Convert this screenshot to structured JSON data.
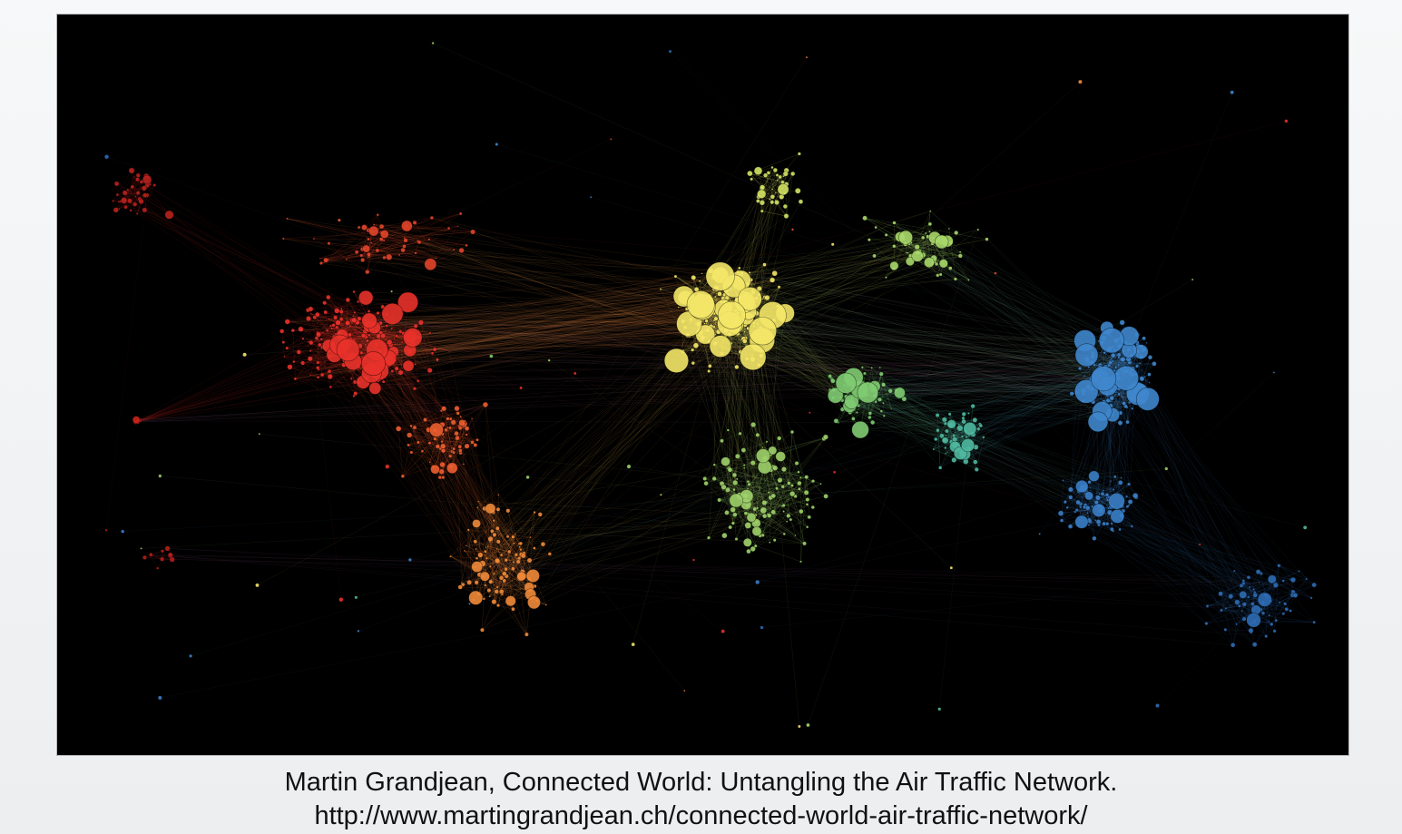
{
  "caption": {
    "title": "Martin Grandjean, Connected World: Untangling the Air Traffic Network.",
    "url": "http://www.martingrandjean.ch/connected-world-air-traffic-network/"
  },
  "figure": {
    "background": "#000000",
    "palette": {
      "americas_red": "#e8322a",
      "americas_orange": "#f08a3a",
      "europe_yellow": "#f4e768",
      "africa_mideast_green": "#9fd26a",
      "asia_teal": "#4fb8a0",
      "asia_blue": "#3f86cc",
      "oceania_blue": "#2e6cb4"
    }
  }
}
